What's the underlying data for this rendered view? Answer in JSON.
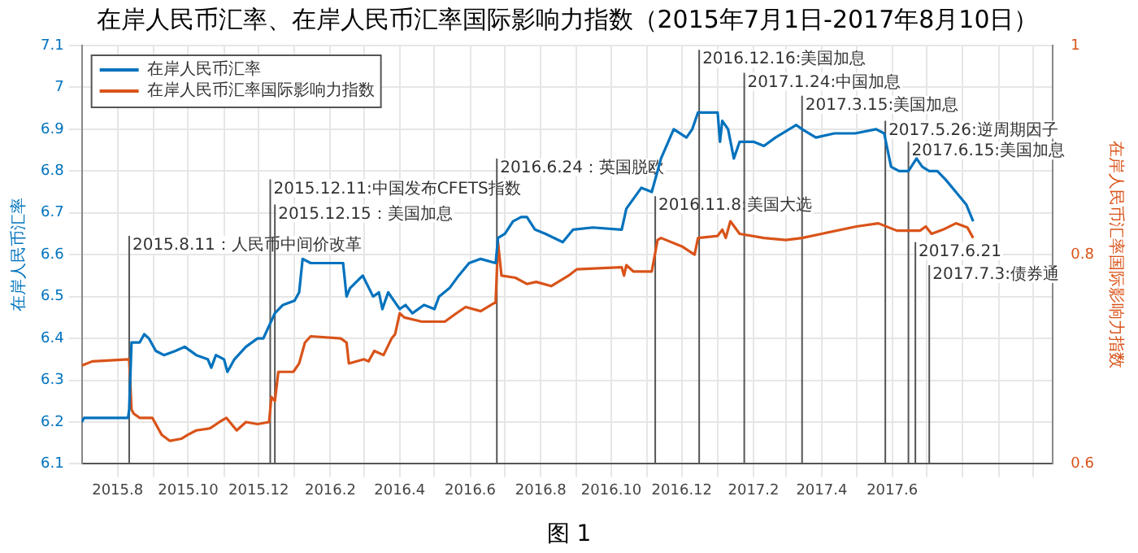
{
  "chart_data": {
    "type": "line",
    "title": "在岸人民币汇率、在岸人民币汇率国际影响力指数（2015年7月1日-2017年8月10日）",
    "ylabel": "在岸人民币汇率",
    "y2label": "在岸人民币汇率国际影响力指数",
    "annotations": [
      "图 1"
    ],
    "series": [
      {
        "name": "在岸人民币汇率",
        "color": "#0072bd",
        "x": [
          "2015-07-01",
          "2015-07-03",
          "2015-08-10",
          "2015-08-11",
          "2015-08-13",
          "2015-08-20",
          "2015-08-24",
          "2015-08-28",
          "2015-09-03",
          "2015-09-10",
          "2015-09-20",
          "2015-09-28",
          "2015-10-08",
          "2015-10-18",
          "2015-10-21",
          "2015-10-25",
          "2015-11-01",
          "2015-11-04",
          "2015-11-10",
          "2015-11-20",
          "2015-11-30",
          "2015-12-05",
          "2015-12-15",
          "2015-12-22",
          "2016-01-01",
          "2016-01-05",
          "2016-01-08",
          "2016-01-15",
          "2016-02-12",
          "2016-02-15",
          "2016-02-18",
          "2016-02-29",
          "2016-03-09",
          "2016-03-14",
          "2016-03-17",
          "2016-03-22",
          "2016-04-01",
          "2016-04-06",
          "2016-04-12",
          "2016-04-22",
          "2016-05-01",
          "2016-05-05",
          "2016-05-14",
          "2016-05-22",
          "2016-05-31",
          "2016-06-10",
          "2016-06-23",
          "2016-06-25",
          "2016-07-01",
          "2016-07-08",
          "2016-07-15",
          "2016-07-20",
          "2016-07-27",
          "2016-08-05",
          "2016-08-20",
          "2016-08-29",
          "2016-09-15",
          "2016-10-10",
          "2016-10-14",
          "2016-10-27",
          "2016-11-05",
          "2016-11-13",
          "2016-11-24",
          "2016-12-05",
          "2016-12-10",
          "2016-12-15",
          "2017-01-01",
          "2017-01-03",
          "2017-01-05",
          "2017-01-10",
          "2017-01-15",
          "2017-01-20",
          "2017-02-01",
          "2017-02-10",
          "2017-02-20",
          "2017-03-10",
          "2017-03-15",
          "2017-03-27",
          "2017-04-12",
          "2017-04-30",
          "2017-05-18",
          "2017-05-25",
          "2017-05-31",
          "2017-06-07",
          "2017-06-15",
          "2017-06-22",
          "2017-06-27",
          "2017-07-03",
          "2017-07-10",
          "2017-07-17",
          "2017-07-26",
          "2017-08-04",
          "2017-08-10"
        ],
        "values": [
          6.2,
          6.21,
          6.21,
          6.23,
          6.39,
          6.39,
          6.41,
          6.4,
          6.37,
          6.36,
          6.37,
          6.38,
          6.36,
          6.35,
          6.33,
          6.36,
          6.35,
          6.32,
          6.35,
          6.38,
          6.4,
          6.4,
          6.46,
          6.48,
          6.49,
          6.51,
          6.59,
          6.58,
          6.58,
          6.5,
          6.52,
          6.55,
          6.5,
          6.51,
          6.47,
          6.51,
          6.47,
          6.48,
          6.46,
          6.48,
          6.47,
          6.5,
          6.52,
          6.55,
          6.58,
          6.59,
          6.58,
          6.64,
          6.65,
          6.68,
          6.69,
          6.69,
          6.66,
          6.65,
          6.63,
          6.66,
          6.665,
          6.66,
          6.71,
          6.76,
          6.75,
          6.83,
          6.9,
          6.88,
          6.9,
          6.94,
          6.94,
          6.87,
          6.92,
          6.9,
          6.83,
          6.87,
          6.87,
          6.86,
          6.88,
          6.91,
          6.9,
          6.88,
          6.89,
          6.89,
          6.9,
          6.89,
          6.81,
          6.8,
          6.8,
          6.83,
          6.81,
          6.8,
          6.8,
          6.78,
          6.75,
          6.72,
          6.68
        ]
      },
      {
        "name": "在岸人民币汇率国际影响力指数",
        "color": "#d95319",
        "axis": "y2",
        "x": [
          "2015-07-01",
          "2015-07-10",
          "2015-08-10",
          "2015-08-11",
          "2015-08-13",
          "2015-08-15",
          "2015-08-20",
          "2015-08-31",
          "2015-09-08",
          "2015-09-15",
          "2015-09-25",
          "2015-10-01",
          "2015-10-08",
          "2015-10-20",
          "2015-10-28",
          "2015-11-03",
          "2015-11-12",
          "2015-11-20",
          "2015-11-30",
          "2015-12-10",
          "2015-12-12",
          "2015-12-15",
          "2015-12-18",
          "2015-12-31",
          "2016-01-05",
          "2016-01-10",
          "2016-01-15",
          "2016-02-10",
          "2016-02-15",
          "2016-02-17",
          "2016-03-01",
          "2016-03-05",
          "2016-03-10",
          "2016-03-18",
          "2016-03-25",
          "2016-03-28",
          "2016-04-01",
          "2016-04-05",
          "2016-04-20",
          "2016-05-10",
          "2016-05-20",
          "2016-05-28",
          "2016-06-10",
          "2016-06-22",
          "2016-06-23",
          "2016-06-25",
          "2016-06-28",
          "2016-07-10",
          "2016-07-20",
          "2016-07-28",
          "2016-08-10",
          "2016-08-25",
          "2016-09-01",
          "2016-10-10",
          "2016-10-12",
          "2016-10-14",
          "2016-10-20",
          "2016-11-05",
          "2016-11-10",
          "2016-11-13",
          "2016-12-01",
          "2016-12-12",
          "2016-12-15",
          "2017-01-01",
          "2017-01-05",
          "2017-01-08",
          "2017-01-12",
          "2017-01-20",
          "2017-02-10",
          "2017-03-01",
          "2017-03-15",
          "2017-04-01",
          "2017-05-01",
          "2017-05-20",
          "2017-06-05",
          "2017-06-25",
          "2017-06-30",
          "2017-07-05",
          "2017-07-15",
          "2017-07-26",
          "2017-08-05",
          "2017-08-10"
        ],
        "values": [
          0.694,
          0.698,
          0.7,
          0.7,
          0.652,
          0.648,
          0.644,
          0.644,
          0.628,
          0.622,
          0.624,
          0.628,
          0.632,
          0.634,
          0.64,
          0.644,
          0.632,
          0.64,
          0.638,
          0.64,
          0.664,
          0.66,
          0.688,
          0.688,
          0.696,
          0.716,
          0.722,
          0.72,
          0.716,
          0.696,
          0.7,
          0.698,
          0.708,
          0.704,
          0.72,
          0.724,
          0.744,
          0.74,
          0.736,
          0.736,
          0.744,
          0.75,
          0.746,
          0.754,
          0.756,
          0.812,
          0.78,
          0.778,
          0.772,
          0.774,
          0.77,
          0.78,
          0.786,
          0.788,
          0.78,
          0.79,
          0.784,
          0.784,
          0.814,
          0.816,
          0.808,
          0.8,
          0.816,
          0.818,
          0.824,
          0.816,
          0.832,
          0.82,
          0.816,
          0.814,
          0.816,
          0.82,
          0.827,
          0.83,
          0.823,
          0.823,
          0.827,
          0.82,
          0.824,
          0.83,
          0.826,
          0.816
        ]
      }
    ],
    "xlim": [
      "2015-07-01",
      "2017-10-18"
    ],
    "xticks": [
      {
        "value": "2015-08",
        "label": "2015.8"
      },
      {
        "value": "2015-09",
        "label": null
      },
      {
        "value": "2015-10",
        "label": "2015.10"
      },
      {
        "value": "2015-11",
        "label": null
      },
      {
        "value": "2015-12",
        "label": "2015.12"
      },
      {
        "value": "2016-01",
        "label": null
      },
      {
        "value": "2016-02",
        "label": "2016.2"
      },
      {
        "value": "2016-03",
        "label": null
      },
      {
        "value": "2016-04",
        "label": "2016.4"
      },
      {
        "value": "2016-05",
        "label": null
      },
      {
        "value": "2016-06",
        "label": "2016.6"
      },
      {
        "value": "2016-07",
        "label": null
      },
      {
        "value": "2016-08",
        "label": "2016.8"
      },
      {
        "value": "2016-09",
        "label": null
      },
      {
        "value": "2016-10",
        "label": "2016.10"
      },
      {
        "value": "2016-11",
        "label": null
      },
      {
        "value": "2016-12",
        "label": "2016.12"
      },
      {
        "value": "2017-01",
        "label": null
      },
      {
        "value": "2017-02",
        "label": "2017.2"
      },
      {
        "value": "2017-03",
        "label": null
      },
      {
        "value": "2017-04",
        "label": "2017.4"
      },
      {
        "value": "2017-05",
        "label": null
      },
      {
        "value": "2017-06",
        "label": "2017.6"
      },
      {
        "value": "2017-07",
        "label": null
      },
      {
        "value": "2017-08",
        "label": null
      },
      {
        "value": "2017-09",
        "label": null
      },
      {
        "value": "2017-10",
        "label": null
      }
    ],
    "ylim": [
      6.1,
      7.1
    ],
    "yticks": [
      6.1,
      6.2,
      6.3,
      6.4,
      6.5,
      6.6,
      6.7,
      6.8,
      6.9,
      7,
      7.1
    ],
    "y2lim": [
      0.6,
      1
    ],
    "y2ticks": [
      0.6,
      0.8,
      1
    ],
    "ref_lines": [
      {
        "axis": "x",
        "value": "2015-08-11",
        "label": "2015.8.11：人民币中间价改革"
      },
      {
        "axis": "x",
        "value": "2015-12-11",
        "label": "2015.12.11:中国发布CFETS指数"
      },
      {
        "axis": "x",
        "value": "2015-12-15",
        "label": "2015.12.15：美国加息"
      },
      {
        "axis": "x",
        "value": "2016-06-24",
        "label": "2016.6.24：英国脱欧"
      },
      {
        "axis": "x",
        "value": "2016-11-08",
        "label": "2016.11.8:美国大选"
      },
      {
        "axis": "x",
        "value": "2016-12-16",
        "label": "2016.12.16:美国加息"
      },
      {
        "axis": "x",
        "value": "2017-01-24",
        "label": "2017.1.24:中国加息"
      },
      {
        "axis": "x",
        "value": "2017-03-15",
        "label": "2017.3.15:美国加息"
      },
      {
        "axis": "x",
        "value": "2017-05-26",
        "label": "2017.5.26:逆周期因子"
      },
      {
        "axis": "x",
        "value": "2017-06-15",
        "label": "2017.6.15:美国加息"
      },
      {
        "axis": "x",
        "value": "2017-06-21",
        "label": "2017.6.21"
      },
      {
        "axis": "x",
        "value": "2017-07-03",
        "label": "2017.7.3:债券通"
      }
    ],
    "grid": true,
    "legend": "top left",
    "marker": "none",
    "line_style": "solid"
  }
}
